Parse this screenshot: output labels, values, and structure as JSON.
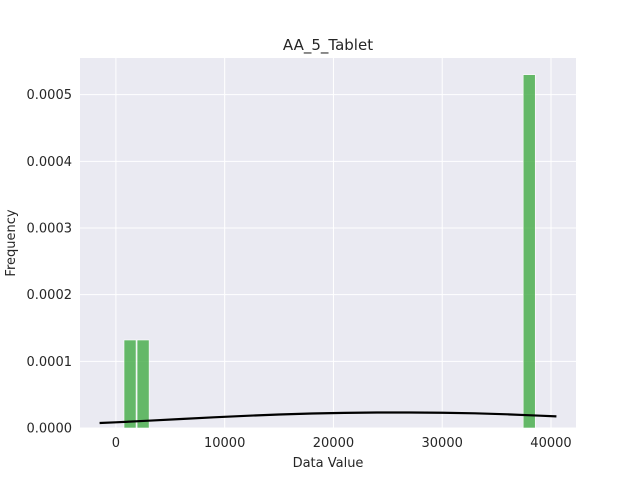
{
  "chart_data": {
    "type": "bar",
    "title": "AA_5_Tablet",
    "xlabel": "Data Value",
    "ylabel": "Frequency",
    "xlim": [
      -3300,
      42300
    ],
    "ylim": [
      0,
      0.000555
    ],
    "xticks": [
      0,
      10000,
      20000,
      30000,
      40000
    ],
    "yticks": [
      0.0,
      0.0001,
      0.0002,
      0.0003,
      0.0004,
      0.0005
    ],
    "xtick_labels": [
      "0",
      "10000",
      "20000",
      "30000",
      "40000"
    ],
    "ytick_labels": [
      "0.0000",
      "0.0001",
      "0.0002",
      "0.0003",
      "0.0004",
      "0.0005"
    ],
    "grid": true,
    "background": "#eaeaf2",
    "bar_color": "#4caf50",
    "curve_color": "#000000",
    "histogram": {
      "bins": [
        {
          "x0": 700,
          "x1": 1900,
          "value": 0.000132
        },
        {
          "x0": 1900,
          "x1": 3100,
          "value": 0.000132
        },
        {
          "x0": 37400,
          "x1": 38600,
          "value": 0.00053
        }
      ]
    },
    "density_curve": {
      "x": [
        -1500,
        0,
        3000,
        6000,
        9000,
        12000,
        15000,
        18000,
        21000,
        24000,
        27000,
        30000,
        33000,
        36000,
        39000,
        40500
      ],
      "y": [
        7.5e-06,
        8.5e-06,
        1.1e-05,
        1.35e-05,
        1.6e-05,
        1.83e-05,
        2.03e-05,
        2.18e-05,
        2.27e-05,
        2.32e-05,
        2.33e-05,
        2.29e-05,
        2.2e-05,
        2.05e-05,
        1.85e-05,
        1.74e-05
      ]
    }
  }
}
